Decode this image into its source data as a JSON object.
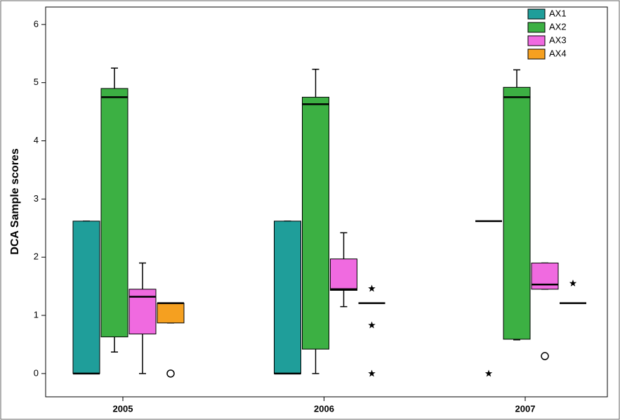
{
  "chart_data": {
    "type": "box",
    "y_label": "DCA Sample scores",
    "categories": [
      "2005",
      "2006",
      "2007"
    ],
    "ylim": [
      -0.4,
      6.3
    ],
    "yticks": [
      0,
      1,
      2,
      3,
      4,
      5,
      6
    ],
    "legend": "top-right",
    "series": [
      {
        "name": "AX1",
        "color": "#1f9e9a",
        "min": [
          0,
          0,
          2.62
        ],
        "q1": [
          0,
          0,
          2.62
        ],
        "median": [
          0,
          0,
          2.62
        ],
        "q3": [
          2.62,
          2.62,
          2.62
        ],
        "max": [
          2.62,
          2.62,
          2.62
        ],
        "outliers": [
          [],
          [],
          []
        ],
        "extremes": [
          [],
          [],
          [
            0
          ]
        ]
      },
      {
        "name": "AX2",
        "color": "#3cb043",
        "min": [
          0.37,
          0,
          0.58
        ],
        "q1": [
          0.63,
          0.42,
          0.59
        ],
        "median": [
          4.75,
          4.63,
          4.75
        ],
        "q3": [
          4.9,
          4.75,
          4.92
        ],
        "max": [
          5.25,
          5.23,
          5.22
        ],
        "outliers": [
          [],
          [],
          []
        ],
        "extremes": [
          [],
          [],
          []
        ]
      },
      {
        "name": "AX3",
        "color": "#f06ae0",
        "min": [
          0,
          1.15,
          1.45
        ],
        "q1": [
          0.68,
          1.43,
          1.45
        ],
        "median": [
          1.32,
          1.45,
          1.53
        ],
        "q3": [
          1.45,
          1.97,
          1.9
        ],
        "max": [
          1.9,
          2.42,
          1.9
        ],
        "outliers": [
          [],
          [],
          [
            0.3
          ]
        ],
        "extremes": [
          [],
          [],
          []
        ]
      },
      {
        "name": "AX4",
        "color": "#f5a020",
        "min": [
          0.87,
          1.21,
          1.21
        ],
        "q1": [
          0.87,
          1.21,
          1.21
        ],
        "median": [
          1.21,
          1.21,
          1.21
        ],
        "q3": [
          1.21,
          1.21,
          1.21
        ],
        "max": [
          1.21,
          1.21,
          1.21
        ],
        "outliers": [
          [
            0
          ],
          [],
          []
        ],
        "extremes": [
          [],
          [
            1.46,
            0.83,
            0
          ],
          [
            1.55
          ]
        ]
      }
    ]
  }
}
